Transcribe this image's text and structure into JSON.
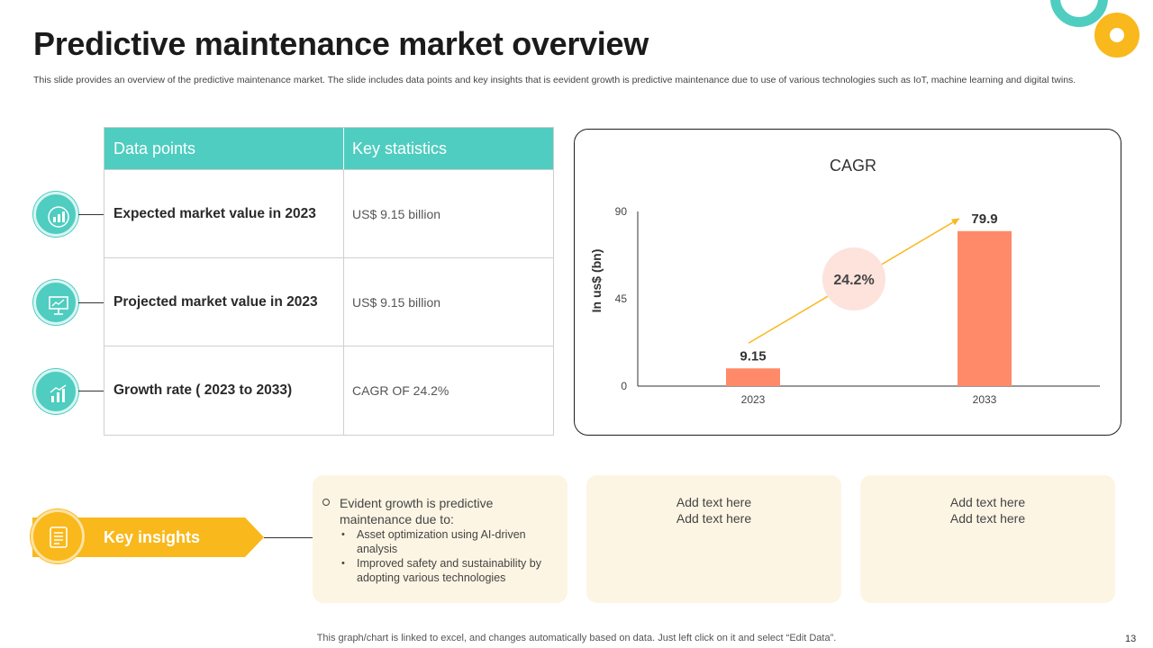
{
  "title": "Predictive maintenance market overview",
  "subtitle": "This slide provides an overview of the predictive maintenance market. The slide includes data points and key insights that is eevident growth is predictive maintenance due to use of various technologies such as IoT, machine learning and digital twins.",
  "table": {
    "headers": [
      "Data points",
      "Key  statistics"
    ],
    "rows": [
      {
        "label": "Expected market value in 2023",
        "value": "US$ 9.15 billion",
        "icon": "money-growth-icon"
      },
      {
        "label": "Projected market value in 2023",
        "value": "US$ 9.15 billion",
        "icon": "presentation-board-icon"
      },
      {
        "label": "Growth rate ( 2023 to 2033)",
        "value": "CAGR OF 24.2%",
        "icon": "growth-chart-icon"
      }
    ]
  },
  "chart_data": {
    "type": "bar",
    "title": "CAGR",
    "ylabel": "In us$ (bn)",
    "xlabel": "",
    "categories": [
      "2023",
      "2033"
    ],
    "values": [
      9.15,
      79.9
    ],
    "data_labels": [
      "9.15",
      "79.9"
    ],
    "ylim": [
      0,
      90
    ],
    "yticks": [
      0,
      45,
      90
    ],
    "annotation": "24.2%",
    "bar_color": "#ff8a6a",
    "arrow_color": "#f9b81b",
    "grid": false
  },
  "insights": {
    "badge_label": "Key insights",
    "box1": {
      "main": "Evident growth is predictive maintenance due to:",
      "bullets": [
        "Asset optimization using AI-driven analysis",
        "Improved safety and sustainability by adopting various technologies"
      ]
    },
    "box2": {
      "line1": "Add text here",
      "line2": "Add text here"
    },
    "box3": {
      "line1": "Add text here",
      "line2": "Add text here"
    }
  },
  "footnote": "This graph/chart is linked to excel, and changes automatically based on data. Just left click on it and select “Edit Data”.",
  "page_number": "13",
  "colors": {
    "teal": "#4ecdc0",
    "yellow": "#f9b81b",
    "coral": "#ff8a6a",
    "cream": "#fdf5e3"
  }
}
